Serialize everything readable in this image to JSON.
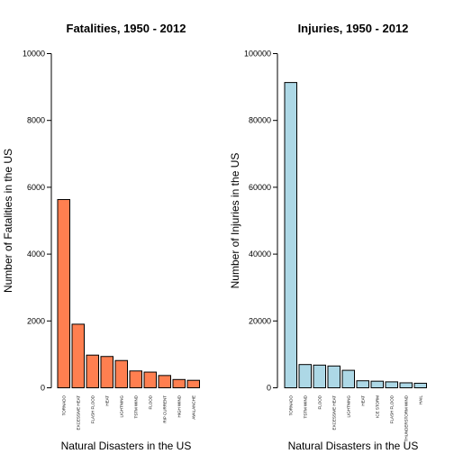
{
  "chart_data": [
    {
      "type": "bar",
      "title": "Fatalities, 1950 - 2012",
      "xlabel": "Natural Disasters in the US",
      "ylabel": "Number of Fatalities in the US",
      "ylim": [
        0,
        10000
      ],
      "yticks": [
        0,
        2000,
        4000,
        6000,
        8000,
        10000
      ],
      "categories": [
        "TORNADO",
        "EXCESSIVE HEAT",
        "FLASH FLOOD",
        "HEAT",
        "LIGHTNING",
        "TSTM WIND",
        "FLOOD",
        "RIP CURRENT",
        "HIGH WIND",
        "AVALANCHE"
      ],
      "values": [
        5633,
        1903,
        978,
        937,
        816,
        504,
        470,
        368,
        248,
        224
      ],
      "bar_color": "#ff7f50",
      "grid": false
    },
    {
      "type": "bar",
      "title": "Injuries, 1950 - 2012",
      "xlabel": "Natural Disasters in the US",
      "ylabel": "Number of Injuries in the US",
      "ylim": [
        0,
        100000
      ],
      "yticks": [
        0,
        20000,
        40000,
        60000,
        80000,
        100000
      ],
      "categories": [
        "TORNADO",
        "TSTM WIND",
        "FLOOD",
        "EXCESSIVE HEAT",
        "LIGHTNING",
        "HEAT",
        "ICE STORM",
        "FLASH FLOOD",
        "THUNDERSTORM WIND",
        "HAIL"
      ],
      "values": [
        91346,
        6957,
        6789,
        6525,
        5230,
        2100,
        1975,
        1777,
        1488,
        1361
      ],
      "bar_color": "#add8e6",
      "grid": false
    }
  ]
}
